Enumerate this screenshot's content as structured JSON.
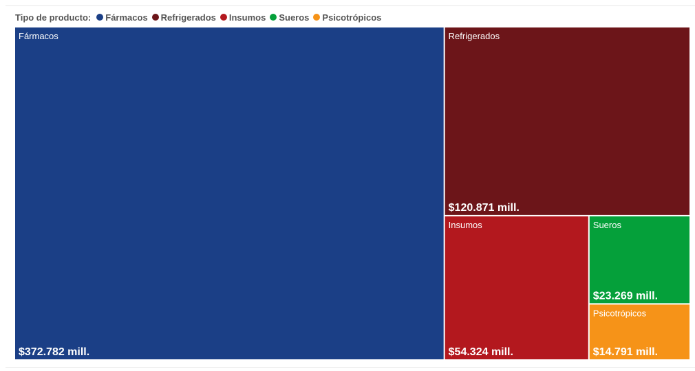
{
  "legend": {
    "title": "Tipo de producto:"
  },
  "chart_data": {
    "type": "treemap",
    "legend_position": "top-left",
    "items": [
      {
        "name": "Fármacos",
        "value": 372.782,
        "label": "$372.782 mill.",
        "color": "#1b3f86"
      },
      {
        "name": "Refrigerados",
        "value": 120.871,
        "label": "$120.871 mill.",
        "color": "#6c1519"
      },
      {
        "name": "Insumos",
        "value": 54.324,
        "label": "$54.324 mill.",
        "color": "#b3181e"
      },
      {
        "name": "Sueros",
        "value": 23.269,
        "label": "$23.269 mill.",
        "color": "#05a03a"
      },
      {
        "name": "Psicotrópicos",
        "value": 14.791,
        "label": "$14.791 mill.",
        "color": "#f69318"
      }
    ]
  }
}
